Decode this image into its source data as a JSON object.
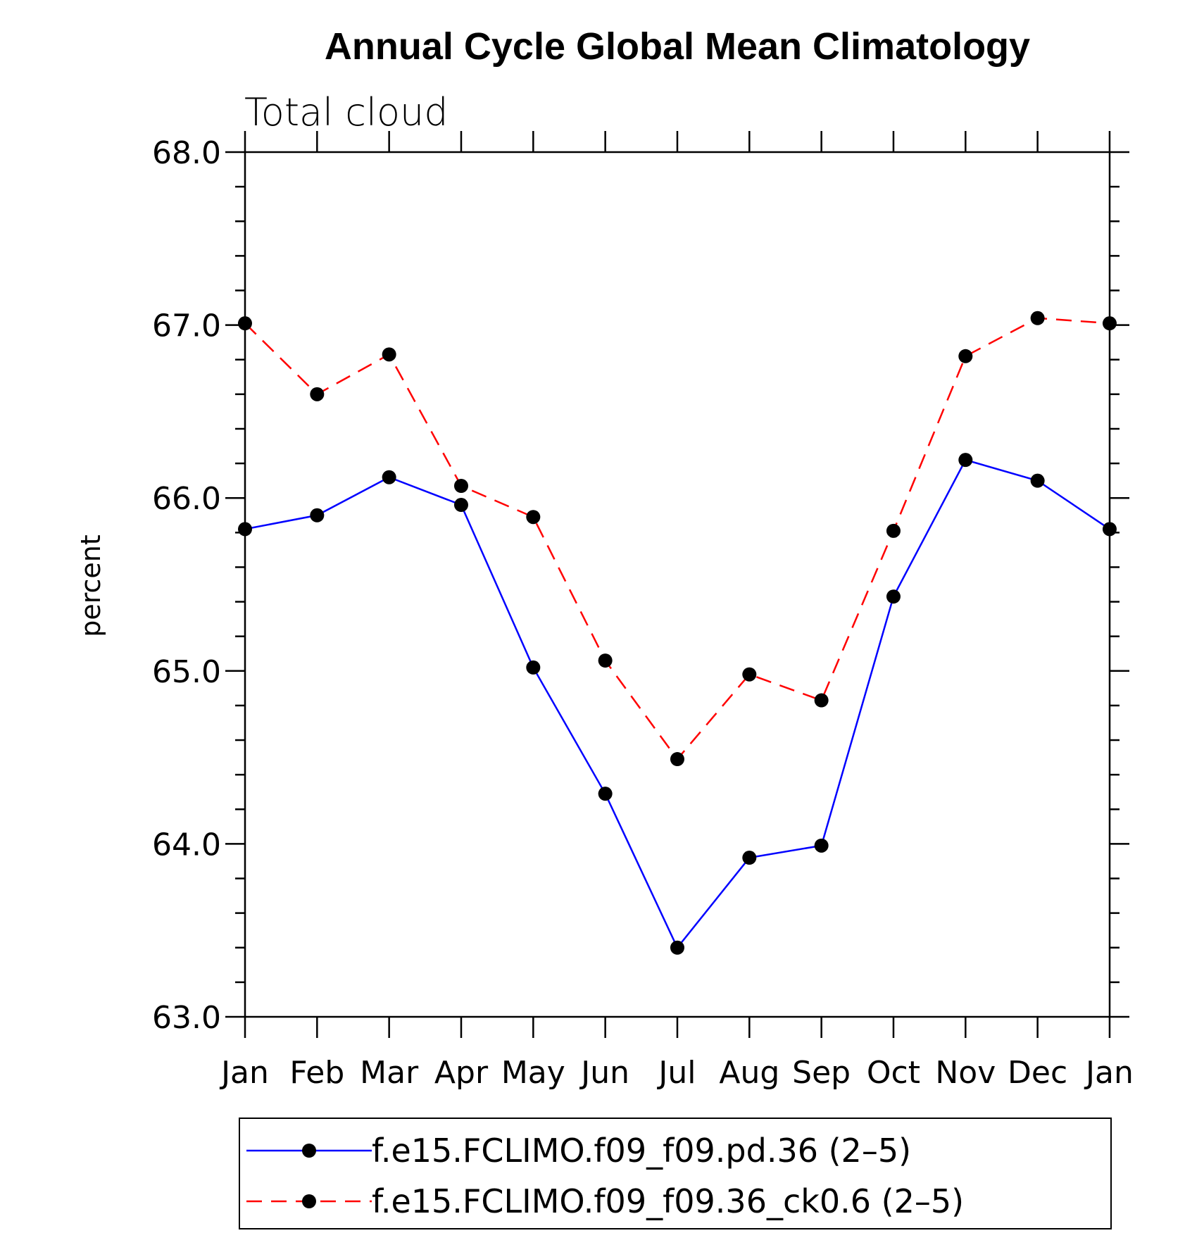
{
  "chart_data": {
    "type": "line",
    "title": "Annual Cycle Global Mean Climatology",
    "subtitle": "Total cloud",
    "ylabel": "percent",
    "xlabel": "",
    "categories": [
      "Jan",
      "Feb",
      "Mar",
      "Apr",
      "May",
      "Jun",
      "Jul",
      "Aug",
      "Sep",
      "Oct",
      "Nov",
      "Dec",
      "Jan"
    ],
    "ylim": [
      63.0,
      68.0
    ],
    "yticks": [
      "63.0",
      "64.0",
      "65.0",
      "66.0",
      "67.0",
      "68.0"
    ],
    "grid": false,
    "legend_position": "bottom",
    "series": [
      {
        "name": "f.e15.FCLIMO.f09_f09.pd.36 (2–5)",
        "color": "#0000ff",
        "dash": "solid",
        "marker": "filled-circle",
        "values": [
          65.82,
          65.9,
          66.12,
          65.96,
          65.02,
          64.29,
          63.4,
          63.92,
          63.99,
          65.43,
          66.22,
          66.1,
          65.82
        ]
      },
      {
        "name": "f.e15.FCLIMO.f09_f09.36_ck0.6 (2–5)",
        "color": "#ff0000",
        "dash": "dashed",
        "marker": "filled-circle",
        "values": [
          67.01,
          66.6,
          66.83,
          66.07,
          65.89,
          65.06,
          64.49,
          64.98,
          64.83,
          65.81,
          66.82,
          67.04,
          67.01
        ]
      }
    ]
  }
}
